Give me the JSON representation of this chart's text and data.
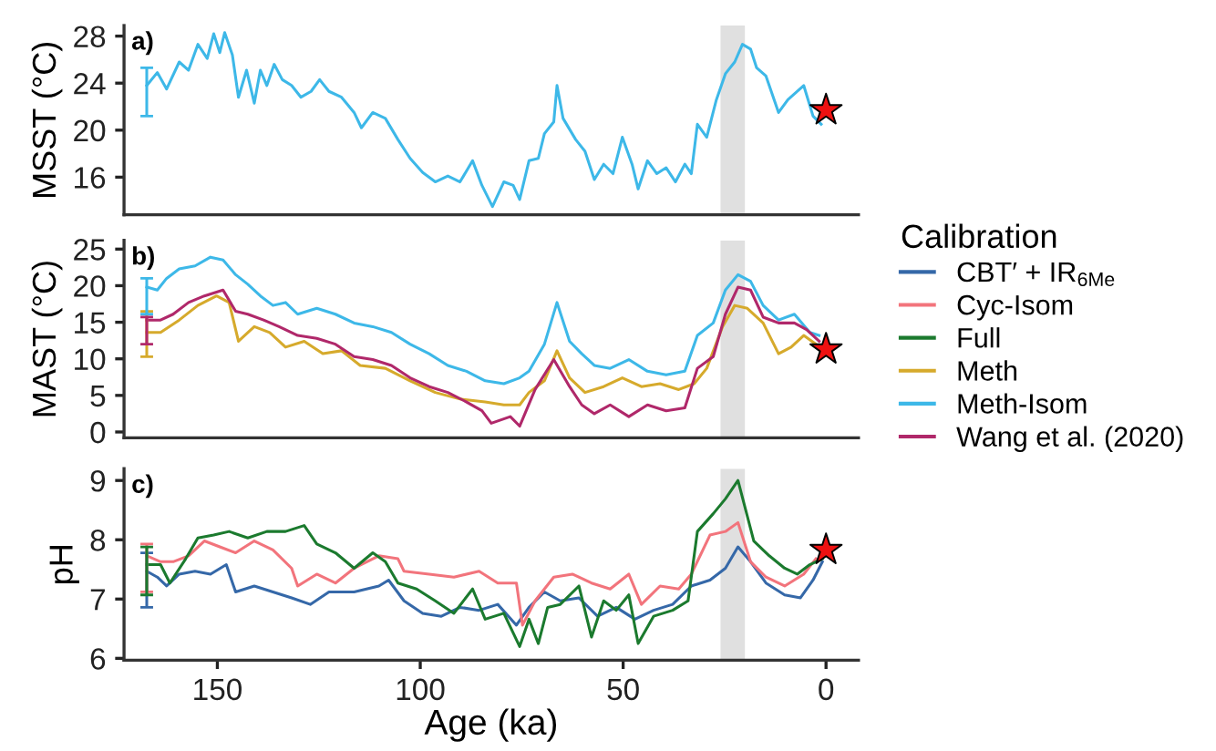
{
  "chart_data": [
    {
      "type": "line",
      "ylabel": "MSST (°C)",
      "annotations": [
        "a)"
      ],
      "legend": "right",
      "xlim": [
        173,
        -8
      ],
      "xticks": [
        150,
        100,
        50,
        0
      ],
      "ylim": [
        12.8,
        28.9
      ],
      "yticks": [
        16,
        20,
        24,
        28
      ],
      "tick_labels": "y",
      "grid": false,
      "marker": "none",
      "line_style": "solid",
      "bands": [
        {
          "axis": "x",
          "from": 26,
          "to": 20,
          "color": "#e0e0e0"
        }
      ],
      "series": [
        {
          "name": "Meth-Isom",
          "color": "#3db8e8",
          "x": [
            167.4,
            164.8,
            162.5,
            159.4,
            157.1,
            154.8,
            152.5,
            150.9,
            149.4,
            148.2,
            146.3,
            144.8,
            142.8,
            140.9,
            139.4,
            137.8,
            136.0,
            134.0,
            131.7,
            129.4,
            126.9,
            124.8,
            122.5,
            119.4,
            116.3,
            114.5,
            111.7,
            108.6,
            105.5,
            102.5,
            99.4,
            96.3,
            93.2,
            90.2,
            87.1,
            84.8,
            82.2,
            79.4,
            77.1,
            75.5,
            73.2,
            70.9,
            69.4,
            67.1,
            66.3,
            64.8,
            61.7,
            59.4,
            57.1,
            54.8,
            52.5,
            50.2,
            47.8,
            46.3,
            44.0,
            41.7,
            39.4,
            37.1,
            34.8,
            33.2,
            31.7,
            29.4,
            27.1,
            24.8,
            22.5,
            20.6,
            18.6,
            17.1,
            14.8,
            11.7,
            9.4,
            5.5,
            3.2,
            1.2
          ],
          "values": [
            23.8,
            24.9,
            23.5,
            25.8,
            25.1,
            27.3,
            26.1,
            28.2,
            26.6,
            28.3,
            26.4,
            22.8,
            25.1,
            22.3,
            25.1,
            23.8,
            25.6,
            24.3,
            23.8,
            22.8,
            23.3,
            24.3,
            23.3,
            22.8,
            21.5,
            20.2,
            21.5,
            21.0,
            19.2,
            17.6,
            16.4,
            15.6,
            16.1,
            15.6,
            17.4,
            15.3,
            13.5,
            15.6,
            15.3,
            14.1,
            17.4,
            17.6,
            19.7,
            20.7,
            23.8,
            21.0,
            19.2,
            18.2,
            15.8,
            17.1,
            16.3,
            19.4,
            17.1,
            15.0,
            17.4,
            16.3,
            16.8,
            15.6,
            17.1,
            16.3,
            20.5,
            19.4,
            22.5,
            24.8,
            25.8,
            27.3,
            26.9,
            25.3,
            24.6,
            21.5,
            22.6,
            23.8,
            21.2,
            20.5
          ],
          "errors": [
            [
              21.2,
              25.3
            ],
            null,
            null,
            null,
            null,
            null,
            null,
            null,
            null,
            null,
            null,
            null,
            null,
            null,
            null,
            null,
            null,
            null,
            null,
            null,
            null,
            null,
            null,
            null,
            null,
            null,
            null,
            null,
            null,
            null,
            null,
            null,
            null,
            null,
            null,
            null,
            null,
            null,
            null,
            null,
            null,
            null,
            null,
            null,
            null,
            null,
            null,
            null,
            null,
            null,
            null,
            null,
            null,
            null,
            null,
            null,
            null,
            null,
            null,
            null,
            null,
            null,
            null,
            null,
            null,
            null,
            null,
            null,
            null,
            null,
            null,
            null,
            null,
            null
          ]
        },
        {
          "type": "scatter",
          "marker": "star",
          "color": "#ee1111",
          "x": [
            0
          ],
          "values": [
            21.7
          ]
        }
      ]
    },
    {
      "type": "line",
      "ylabel": "MAST (°C)",
      "annotations": [
        "b)"
      ],
      "legend": "right",
      "legend_title": "Calibration",
      "xlim": [
        173,
        -8
      ],
      "xticks": [
        150,
        100,
        50,
        0
      ],
      "ylim": [
        -0.8,
        26.2
      ],
      "yticks": [
        0,
        5,
        10,
        15,
        20,
        25
      ],
      "tick_labels": "y",
      "grid": false,
      "marker": "none",
      "line_style": "solid",
      "bands": [
        {
          "axis": "x",
          "from": 26,
          "to": 20,
          "color": "#e0e0e0"
        }
      ],
      "series": [
        {
          "name": "Meth",
          "color": "#d6aa2c",
          "x": [
            167.4,
            164.0,
            159.4,
            154.8,
            150.2,
            147.1,
            144.8,
            140.9,
            137.1,
            133.2,
            128.6,
            124.0,
            119.4,
            114.8,
            108.6,
            102.5,
            96.3,
            90.2,
            84.0,
            79.4,
            75.5,
            73.2,
            69.4,
            66.3,
            63.2,
            59.4,
            54.8,
            50.2,
            45.5,
            40.9,
            36.3,
            32.5,
            29.4,
            25.5,
            22.5,
            19.4,
            15.5,
            11.7,
            8.6,
            5.5,
            2.5
          ],
          "values": [
            13.6,
            13.6,
            15.3,
            17.3,
            18.6,
            17.7,
            12.4,
            14.4,
            13.6,
            11.6,
            12.4,
            10.7,
            11.1,
            9.1,
            8.7,
            7.0,
            5.4,
            4.5,
            4.1,
            3.7,
            3.7,
            5.4,
            7.0,
            11.1,
            7.4,
            5.4,
            6.2,
            7.4,
            6.2,
            6.6,
            5.8,
            6.6,
            8.7,
            14.4,
            17.3,
            16.9,
            14.9,
            10.7,
            11.6,
            13.2,
            12.0
          ],
          "errors": [
            [
              10.3,
              16.5
            ],
            null,
            null,
            null,
            null,
            null,
            null,
            null,
            null,
            null,
            null,
            null,
            null,
            null,
            null,
            null,
            null,
            null,
            null,
            null,
            null,
            null,
            null,
            null,
            null,
            null,
            null,
            null,
            null,
            null,
            null,
            null,
            null,
            null,
            null,
            null,
            null,
            null,
            null,
            null,
            null
          ]
        },
        {
          "name": "Meth-Isom",
          "color": "#3db8e8",
          "x": [
            167.4,
            164.8,
            162.5,
            159.4,
            155.5,
            151.7,
            148.6,
            145.5,
            142.5,
            139.4,
            136.3,
            133.2,
            130.2,
            125.5,
            120.9,
            116.3,
            111.7,
            107.1,
            102.5,
            97.8,
            93.2,
            88.6,
            84.0,
            79.4,
            75.5,
            73.2,
            69.4,
            66.3,
            63.2,
            60.2,
            57.1,
            53.2,
            48.6,
            44.0,
            39.4,
            34.8,
            31.7,
            27.8,
            24.8,
            21.7,
            18.6,
            15.5,
            11.7,
            7.8,
            4.0,
            1.7
          ],
          "values": [
            19.8,
            19.4,
            21.0,
            22.3,
            22.7,
            23.9,
            23.5,
            21.5,
            20.2,
            18.6,
            17.3,
            17.7,
            16.1,
            16.9,
            16.1,
            14.9,
            14.4,
            13.6,
            12.0,
            10.7,
            9.1,
            8.3,
            7.0,
            6.6,
            7.4,
            8.3,
            12.0,
            17.7,
            12.4,
            10.7,
            9.1,
            8.7,
            9.9,
            8.3,
            7.8,
            8.3,
            13.2,
            14.9,
            19.4,
            21.5,
            20.6,
            17.3,
            15.3,
            16.1,
            13.6,
            13.2
          ],
          "errors": [
            [
              16.1,
              21.0
            ],
            null,
            null,
            null,
            null,
            null,
            null,
            null,
            null,
            null,
            null,
            null,
            null,
            null,
            null,
            null,
            null,
            null,
            null,
            null,
            null,
            null,
            null,
            null,
            null,
            null,
            null,
            null,
            null,
            null,
            null,
            null,
            null,
            null,
            null,
            null,
            null,
            null,
            null,
            null,
            null,
            null,
            null,
            null,
            null,
            null
          ]
        },
        {
          "name": "Wang et al. (2020)",
          "color": "#b0286a",
          "x": [
            167.4,
            164.0,
            160.9,
            157.1,
            153.2,
            148.6,
            145.5,
            142.5,
            138.6,
            134.8,
            130.2,
            125.5,
            120.9,
            116.3,
            111.7,
            107.1,
            102.5,
            97.8,
            93.2,
            88.6,
            84.8,
            82.5,
            77.8,
            75.5,
            71.7,
            67.1,
            63.2,
            60.2,
            57.1,
            53.2,
            48.6,
            44.0,
            39.4,
            34.8,
            31.7,
            27.8,
            24.8,
            21.7,
            18.6,
            15.5,
            11.7,
            7.8,
            4.8,
            1.7
          ],
          "values": [
            15.3,
            15.3,
            16.1,
            17.7,
            18.6,
            19.4,
            16.5,
            16.1,
            15.3,
            14.4,
            13.2,
            12.8,
            12.0,
            10.3,
            9.9,
            9.1,
            7.4,
            6.2,
            5.4,
            4.1,
            2.9,
            1.2,
            2.1,
            0.8,
            5.8,
            9.9,
            6.2,
            3.7,
            2.5,
            3.7,
            2.1,
            3.7,
            2.9,
            3.3,
            8.7,
            10.3,
            16.1,
            19.8,
            19.4,
            15.7,
            14.9,
            14.9,
            14.0,
            12.4
          ],
          "errors": [
            [
              12.0,
              15.7
            ],
            null,
            null,
            null,
            null,
            null,
            null,
            null,
            null,
            null,
            null,
            null,
            null,
            null,
            null,
            null,
            null,
            null,
            null,
            null,
            null,
            null,
            null,
            null,
            null,
            null,
            null,
            null,
            null,
            null,
            null,
            null,
            null,
            null,
            null,
            null,
            null,
            null,
            null,
            null,
            null,
            null,
            null,
            null
          ]
        },
        {
          "type": "scatter",
          "marker": "star",
          "color": "#ee1111",
          "x": [
            0
          ],
          "values": [
            11.3
          ]
        }
      ]
    },
    {
      "type": "line",
      "ylabel": "pH",
      "xlabel": "Age (ka)",
      "annotations": [
        "c)"
      ],
      "legend": "right",
      "xlim": [
        173,
        -8
      ],
      "xticks": [
        150,
        100,
        50,
        0
      ],
      "ylim": [
        5.97,
        9.2
      ],
      "yticks": [
        6,
        7,
        8,
        9
      ],
      "grid": false,
      "marker": "none",
      "line_style": "solid",
      "bands": [
        {
          "axis": "x",
          "from": 26,
          "to": 20,
          "color": "#e0e0e0"
        }
      ],
      "series": [
        {
          "name": "CBT′ + IR$_{6Me}$",
          "color": "#3568a8",
          "x": [
            167.4,
            164.8,
            162.5,
            159.4,
            155.5,
            151.7,
            147.8,
            145.5,
            140.9,
            136.3,
            131.7,
            127.1,
            122.5,
            116.3,
            110.2,
            107.8,
            104.0,
            99.4,
            94.8,
            90.2,
            85.5,
            80.9,
            76.3,
            73.2,
            69.4,
            65.5,
            60.9,
            56.3,
            51.7,
            47.1,
            42.5,
            37.8,
            33.2,
            28.6,
            24.8,
            21.7,
            18.6,
            14.8,
            10.2,
            6.3,
            3.2,
            0.9
          ],
          "values": [
            7.47,
            7.37,
            7.22,
            7.42,
            7.47,
            7.42,
            7.58,
            7.12,
            7.22,
            7.12,
            7.02,
            6.91,
            7.12,
            7.12,
            7.22,
            7.32,
            6.97,
            6.76,
            6.71,
            6.86,
            6.81,
            6.91,
            6.56,
            6.86,
            7.12,
            6.97,
            7.02,
            6.71,
            6.86,
            6.66,
            6.81,
            6.91,
            7.22,
            7.32,
            7.52,
            7.88,
            7.63,
            7.27,
            7.07,
            7.02,
            7.32,
            7.63
          ],
          "errors": [
            [
              6.86,
              7.78
            ],
            null,
            null,
            null,
            null,
            null,
            null,
            null,
            null,
            null,
            null,
            null,
            null,
            null,
            null,
            null,
            null,
            null,
            null,
            null,
            null,
            null,
            null,
            null,
            null,
            null,
            null,
            null,
            null,
            null,
            null,
            null,
            null,
            null,
            null,
            null,
            null,
            null,
            null,
            null,
            null,
            null
          ]
        },
        {
          "name": "Cyc-Isom",
          "color": "#f2747c",
          "x": [
            167.4,
            164.0,
            160.9,
            157.1,
            153.2,
            149.4,
            145.5,
            140.9,
            136.3,
            131.7,
            130.2,
            125.5,
            120.9,
            116.3,
            110.2,
            105.5,
            104.0,
            97.8,
            91.7,
            85.5,
            80.9,
            76.3,
            74.8,
            71.7,
            67.1,
            62.5,
            57.8,
            53.2,
            48.6,
            45.5,
            40.9,
            36.3,
            33.2,
            28.6,
            24.8,
            21.7,
            18.6,
            14.8,
            10.2,
            5.5,
            2.5
          ],
          "values": [
            7.73,
            7.63,
            7.63,
            7.73,
            7.98,
            7.88,
            7.78,
            7.98,
            7.83,
            7.52,
            7.22,
            7.42,
            7.27,
            7.52,
            7.73,
            7.68,
            7.47,
            7.42,
            7.37,
            7.47,
            7.27,
            7.27,
            6.56,
            6.97,
            7.37,
            7.42,
            7.27,
            7.17,
            7.42,
            6.91,
            7.22,
            7.17,
            7.42,
            8.08,
            8.14,
            8.29,
            7.63,
            7.37,
            7.22,
            7.42,
            7.68
          ],
          "errors": [
            [
              7.12,
              7.93
            ],
            null,
            null,
            null,
            null,
            null,
            null,
            null,
            null,
            null,
            null,
            null,
            null,
            null,
            null,
            null,
            null,
            null,
            null,
            null,
            null,
            null,
            null,
            null,
            null,
            null,
            null,
            null,
            null,
            null,
            null,
            null,
            null,
            null,
            null,
            null,
            null,
            null,
            null,
            null,
            null
          ]
        },
        {
          "name": "Full",
          "color": "#1b7a2e",
          "x": [
            167.4,
            164.0,
            161.7,
            157.8,
            154.8,
            150.9,
            147.1,
            142.5,
            137.8,
            133.2,
            128.6,
            125.5,
            120.9,
            116.3,
            111.7,
            108.6,
            105.5,
            100.9,
            96.3,
            91.7,
            87.1,
            84.0,
            79.4,
            75.5,
            73.2,
            70.9,
            68.6,
            65.5,
            60.9,
            57.8,
            54.8,
            51.7,
            48.6,
            46.3,
            42.5,
            37.8,
            34.0,
            31.7,
            27.8,
            24.8,
            21.7,
            17.8,
            14.0,
            10.2,
            7.1,
            4.0,
            0.9
          ],
          "values": [
            7.58,
            7.58,
            7.27,
            7.68,
            8.03,
            8.08,
            8.14,
            8.03,
            8.14,
            8.14,
            8.24,
            7.93,
            7.78,
            7.52,
            7.78,
            7.63,
            7.27,
            7.17,
            6.97,
            6.76,
            7.17,
            6.66,
            6.76,
            6.2,
            6.66,
            6.25,
            6.86,
            6.91,
            7.22,
            6.36,
            6.97,
            6.81,
            7.07,
            6.25,
            6.71,
            6.81,
            6.97,
            8.14,
            8.44,
            8.69,
            9.0,
            7.98,
            7.73,
            7.52,
            7.42,
            7.58,
            7.68
          ],
          "errors": [
            [
              7.07,
              7.88
            ],
            null,
            null,
            null,
            null,
            null,
            null,
            null,
            null,
            null,
            null,
            null,
            null,
            null,
            null,
            null,
            null,
            null,
            null,
            null,
            null,
            null,
            null,
            null,
            null,
            null,
            null,
            null,
            null,
            null,
            null,
            null,
            null,
            null,
            null,
            null,
            null,
            null,
            null,
            null,
            null,
            null,
            null,
            null,
            null,
            null,
            null
          ]
        },
        {
          "type": "scatter",
          "marker": "star",
          "color": "#ee1111",
          "x": [
            0
          ],
          "values": [
            7.83
          ]
        }
      ]
    }
  ]
}
